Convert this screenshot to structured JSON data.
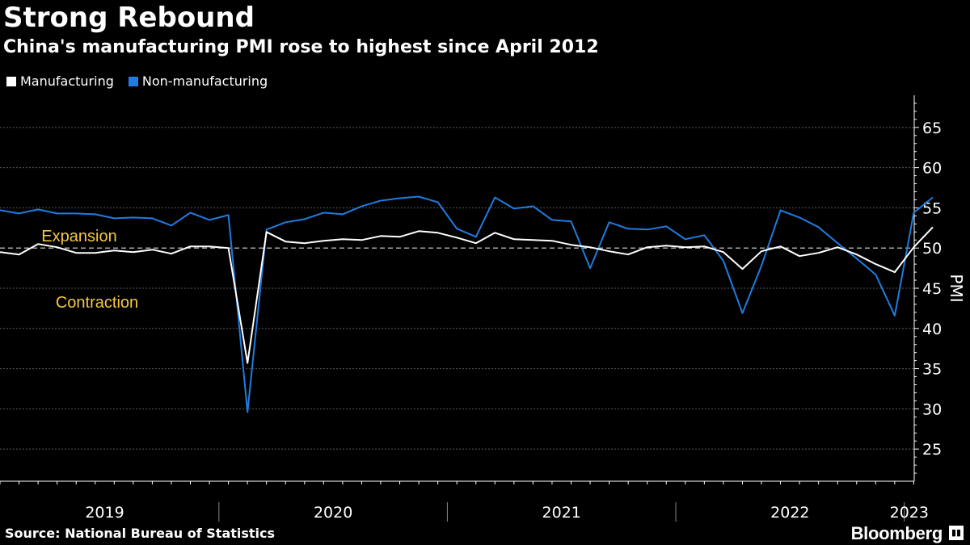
{
  "header": {
    "title": "Strong Rebound",
    "subtitle": "China's manufacturing PMI rose to highest since April 2012"
  },
  "footer": {
    "source": "Source: National Bureau of Statistics",
    "brand": "Bloomberg"
  },
  "colors": {
    "background": "#000000",
    "manufacturing": "#ffffff",
    "non_manufacturing": "#1f7ce0",
    "annotation": "#f5c842",
    "grid": "#5a5a5a"
  },
  "chart_data": {
    "type": "line",
    "title": "Strong Rebound",
    "subtitle": "China's manufacturing PMI rose to highest since April 2012",
    "ylabel": "PMI",
    "xlabel": "",
    "ylim": [
      21,
      69
    ],
    "yticks": [
      25,
      30,
      35,
      40,
      45,
      50,
      55,
      60,
      65
    ],
    "y_axis_side": "right",
    "grid": true,
    "legend_position": "top-left",
    "reference_line": 50,
    "annotations": [
      "Expansion",
      "Contraction"
    ],
    "x_tick_labels": [
      "2019",
      "2020",
      "2021",
      "2022",
      "2023"
    ],
    "x": [
      "2019-01",
      "2019-02",
      "2019-03",
      "2019-04",
      "2019-05",
      "2019-06",
      "2019-07",
      "2019-08",
      "2019-09",
      "2019-10",
      "2019-11",
      "2019-12",
      "2020-01",
      "2020-02",
      "2020-03",
      "2020-04",
      "2020-05",
      "2020-06",
      "2020-07",
      "2020-08",
      "2020-09",
      "2020-10",
      "2020-11",
      "2020-12",
      "2021-01",
      "2021-02",
      "2021-03",
      "2021-04",
      "2021-05",
      "2021-06",
      "2021-07",
      "2021-08",
      "2021-09",
      "2021-10",
      "2021-11",
      "2021-12",
      "2022-01",
      "2022-02",
      "2022-03",
      "2022-04",
      "2022-05",
      "2022-06",
      "2022-07",
      "2022-08",
      "2022-09",
      "2022-10",
      "2022-11",
      "2022-12",
      "2023-01",
      "2023-02"
    ],
    "series": [
      {
        "name": "Manufacturing",
        "values": [
          49.5,
          49.2,
          50.5,
          50.1,
          49.4,
          49.4,
          49.7,
          49.5,
          49.8,
          49.3,
          50.2,
          50.2,
          50.0,
          35.7,
          52.0,
          50.8,
          50.6,
          50.9,
          51.1,
          51.0,
          51.5,
          51.4,
          52.1,
          51.9,
          51.3,
          50.6,
          51.9,
          51.1,
          51.0,
          50.9,
          50.4,
          50.1,
          49.6,
          49.2,
          50.1,
          50.3,
          50.1,
          50.2,
          49.5,
          47.4,
          49.6,
          50.2,
          49.0,
          49.4,
          50.1,
          49.2,
          48.0,
          47.0,
          50.1,
          52.6
        ]
      },
      {
        "name": "Non-manufacturing",
        "values": [
          54.7,
          54.3,
          54.8,
          54.3,
          54.3,
          54.2,
          53.7,
          53.8,
          53.7,
          52.8,
          54.4,
          53.5,
          54.1,
          29.6,
          52.3,
          53.2,
          53.6,
          54.4,
          54.2,
          55.2,
          55.9,
          56.2,
          56.4,
          55.7,
          52.4,
          51.4,
          56.3,
          54.9,
          55.2,
          53.5,
          53.3,
          47.5,
          53.2,
          52.4,
          52.3,
          52.7,
          51.1,
          51.6,
          48.4,
          41.9,
          47.8,
          54.7,
          53.8,
          52.6,
          50.6,
          48.7,
          46.7,
          41.6,
          54.4,
          56.3
        ]
      }
    ]
  }
}
